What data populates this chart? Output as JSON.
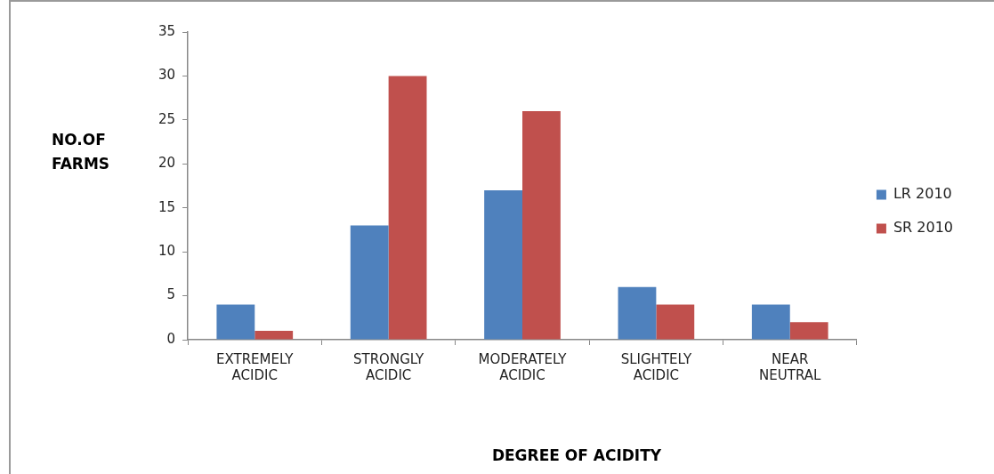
{
  "chart_data": {
    "type": "bar",
    "xlabel": "DEGREE OF ACIDITY",
    "ylabel": "NO.OF FARMS",
    "categories": [
      "EXTREMELY ACIDIC",
      "STRONGLY ACIDIC",
      "MODERATELY ACIDIC",
      "SLIGHTELY ACIDIC",
      "NEAR NEUTRAL"
    ],
    "series": [
      {
        "name": "LR 2010",
        "color": "#4f81bd",
        "values": [
          4,
          13,
          17,
          6,
          4
        ]
      },
      {
        "name": "SR 2010",
        "color": "#c0504d",
        "values": [
          1,
          30,
          26,
          4,
          2
        ]
      }
    ],
    "ylim": [
      0,
      35
    ],
    "yticks": [
      0,
      5,
      10,
      15,
      20,
      25,
      30,
      35
    ],
    "legend": "right"
  }
}
